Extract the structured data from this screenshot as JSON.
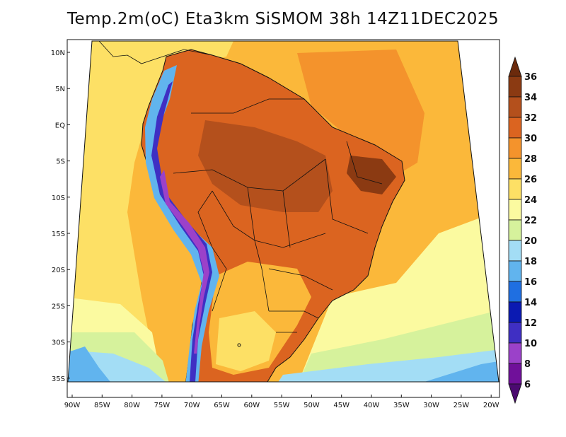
{
  "title": "Temp.2m(oC) Eta3km SiSMOM 38h 14Z11DEC2025",
  "map": {
    "lat_labels": [
      "10N",
      "5N",
      "EQ",
      "5S",
      "10S",
      "15S",
      "20S",
      "25S",
      "30S",
      "35S"
    ],
    "lon_labels": [
      "90W",
      "85W",
      "80W",
      "75W",
      "70W",
      "65W",
      "60W",
      "55W",
      "50W",
      "45W",
      "40W",
      "35W",
      "30W",
      "25W",
      "20W"
    ]
  },
  "colorbar": {
    "unit": "oC",
    "labels": [
      "36",
      "34",
      "32",
      "30",
      "28",
      "26",
      "24",
      "22",
      "20",
      "18",
      "16",
      "14",
      "12",
      "10",
      "8",
      "6"
    ],
    "colors": {
      "above_36": "#6b2a0c",
      "34_36": "#8b3a12",
      "32_34": "#b4501c",
      "30_32": "#db6420",
      "28_30": "#f4932c",
      "26_28": "#fbb83a",
      "24_26": "#fde065",
      "22_24": "#fbfaa0",
      "20_22": "#d6f29c",
      "18_20": "#a3ddf5",
      "16_18": "#61b4ee",
      "14_16": "#1f6fe1",
      "12_14": "#0b1ab2",
      "10_12": "#3f2fc3",
      "8_10": "#9b41c9",
      "6_8": "#70109a",
      "below_6": "#4b0a70"
    }
  }
}
